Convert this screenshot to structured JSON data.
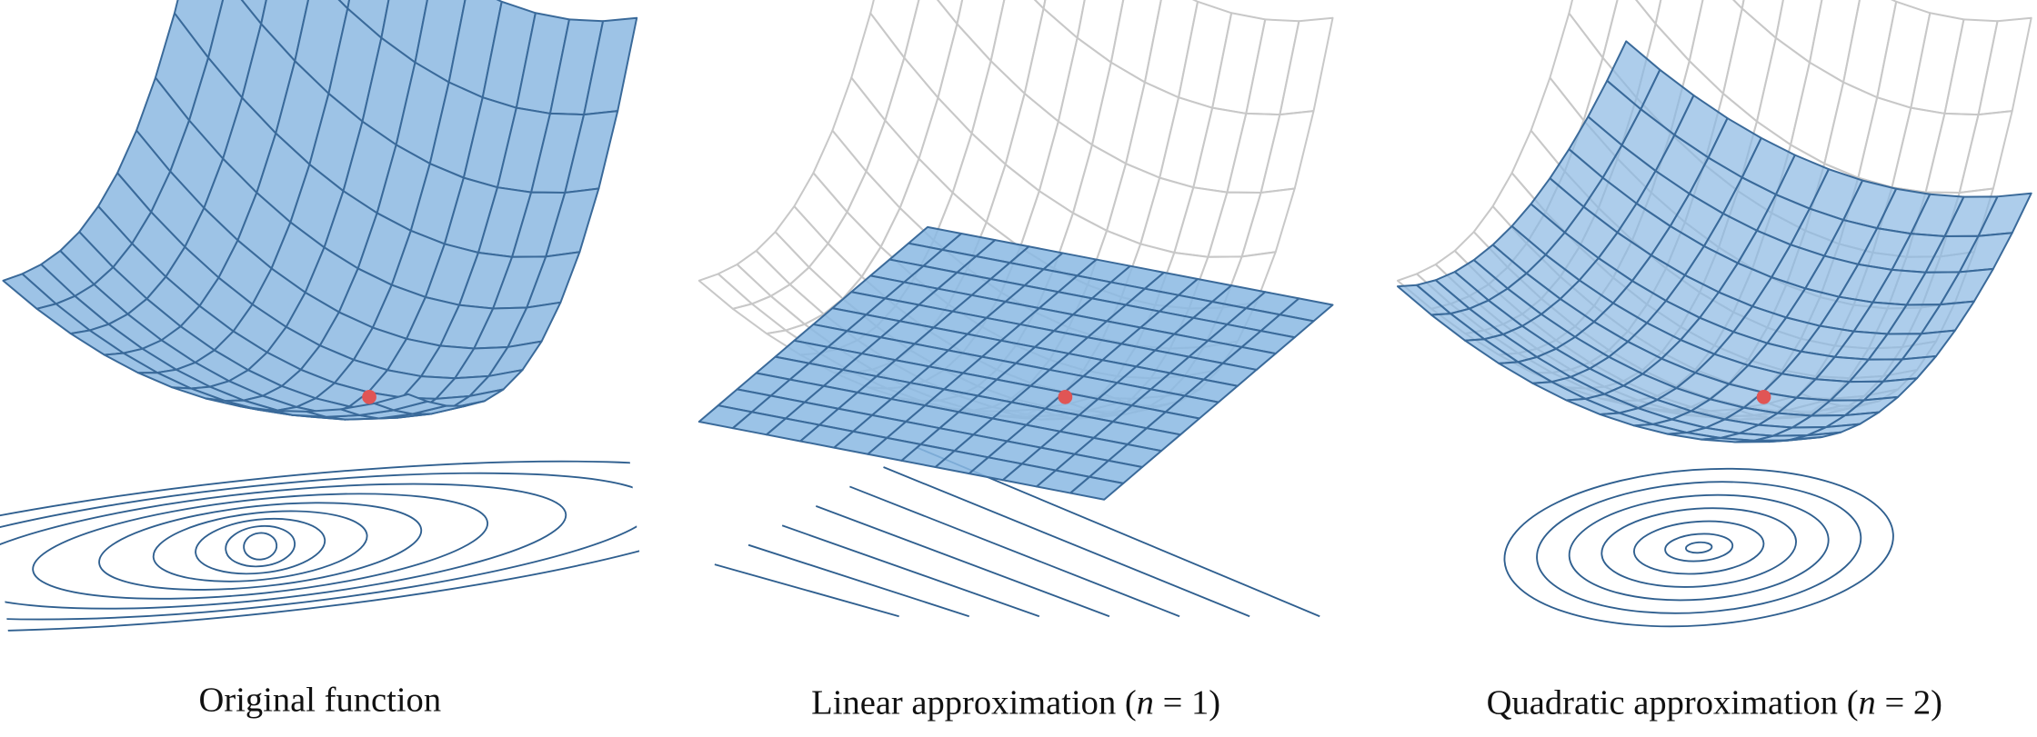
{
  "captions": [
    {
      "text": "Original function"
    },
    {
      "text": "Linear approximation (",
      "variable": "n",
      "rest": " = 1)"
    },
    {
      "text": "Quadratic approximation (",
      "variable": "n",
      "rest": " = 2)"
    }
  ]
}
